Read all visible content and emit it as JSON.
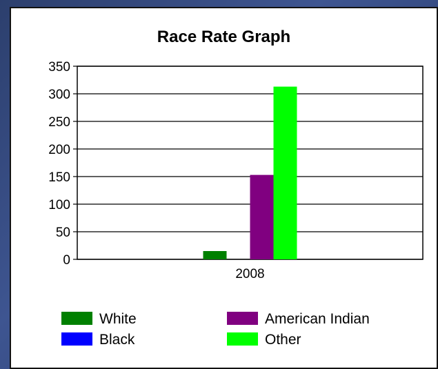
{
  "chart_data": {
    "type": "bar",
    "title": "Race Rate Graph",
    "categories": [
      "2008"
    ],
    "series": [
      {
        "name": "White",
        "values": [
          15
        ],
        "color": "#008000"
      },
      {
        "name": "Black",
        "values": [
          0
        ],
        "color": "#0000ff"
      },
      {
        "name": "American Indian",
        "values": [
          153
        ],
        "color": "#800080"
      },
      {
        "name": "Other",
        "values": [
          313
        ],
        "color": "#00ff00"
      }
    ],
    "ylim": [
      0,
      350
    ],
    "yticks": [
      0,
      50,
      100,
      150,
      200,
      250,
      300,
      350
    ],
    "grid": true,
    "legend_position": "bottom"
  }
}
